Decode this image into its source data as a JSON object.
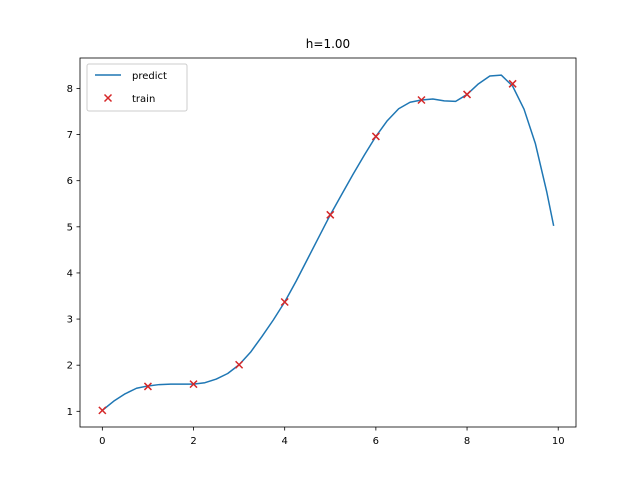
{
  "chart_data": {
    "type": "line",
    "title": "h=1.00",
    "xlabel": "",
    "ylabel": "",
    "xlim": [
      -0.49,
      10.39
    ],
    "ylim": [
      0.66,
      8.66
    ],
    "grid": false,
    "legend_position": "top-left",
    "x_ticks": [
      0,
      2,
      4,
      6,
      8,
      10
    ],
    "y_ticks": [
      1,
      2,
      3,
      4,
      5,
      6,
      7,
      8
    ],
    "series": [
      {
        "name": "predict",
        "kind": "line",
        "color": "#1f77b4",
        "x": [
          0.0,
          0.25,
          0.5,
          0.75,
          1.0,
          1.25,
          1.5,
          1.75,
          2.0,
          2.25,
          2.5,
          2.75,
          3.0,
          3.25,
          3.5,
          3.75,
          4.0,
          4.25,
          4.5,
          4.75,
          5.0,
          5.25,
          5.5,
          5.75,
          6.0,
          6.25,
          6.5,
          6.75,
          7.0,
          7.25,
          7.5,
          7.75,
          8.0,
          8.25,
          8.5,
          8.75,
          9.0,
          9.25,
          9.5,
          9.75,
          9.9
        ],
        "y": [
          1.02,
          1.22,
          1.38,
          1.5,
          1.55,
          1.58,
          1.59,
          1.59,
          1.59,
          1.62,
          1.7,
          1.82,
          2.01,
          2.28,
          2.62,
          2.98,
          3.37,
          3.82,
          4.3,
          4.78,
          5.26,
          5.7,
          6.14,
          6.56,
          6.96,
          7.3,
          7.56,
          7.7,
          7.75,
          7.77,
          7.73,
          7.72,
          7.87,
          8.1,
          8.27,
          8.29,
          8.05,
          7.55,
          6.8,
          5.75,
          5.02
        ]
      },
      {
        "name": "train",
        "kind": "scatter",
        "color": "#d62728",
        "marker": "x",
        "x": [
          0,
          1,
          2,
          3,
          4,
          5,
          6,
          7,
          8,
          9
        ],
        "y": [
          1.02,
          1.54,
          1.59,
          2.01,
          3.37,
          5.26,
          6.96,
          7.75,
          7.87,
          8.1
        ]
      }
    ]
  }
}
